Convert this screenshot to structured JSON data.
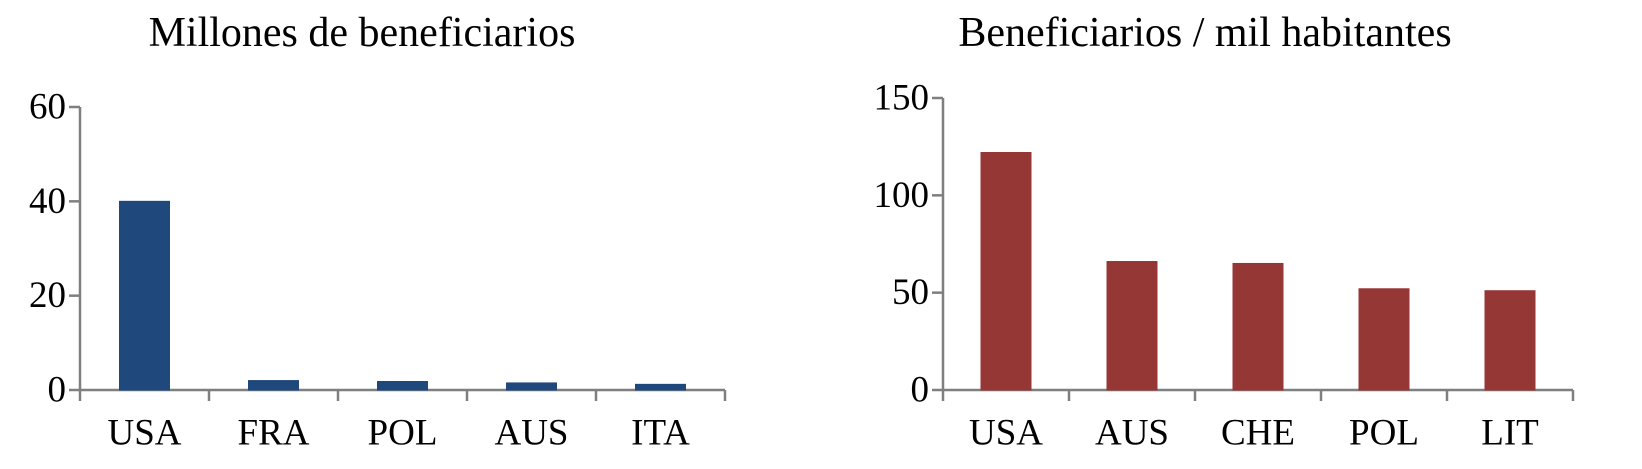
{
  "chart_data": [
    {
      "type": "bar",
      "title": "Millones de beneficiarios",
      "categories": [
        "USA",
        "FRA",
        "POL",
        "AUS",
        "ITA"
      ],
      "values": [
        40,
        2.0,
        1.8,
        1.5,
        1.2
      ],
      "ylim": [
        0,
        60
      ],
      "yticks": [
        "0",
        "20",
        "40",
        "60"
      ],
      "color": "#1f497d",
      "grid": false,
      "legend": "none"
    },
    {
      "type": "bar",
      "title": "Beneficiarios / mil habitantes",
      "categories": [
        "USA",
        "AUS",
        "CHE",
        "POL",
        "LIT"
      ],
      "values": [
        122,
        66,
        65,
        52,
        51
      ],
      "ylim": [
        0,
        150
      ],
      "yticks": [
        "0",
        "50",
        "100",
        "150"
      ],
      "color": "#953735",
      "grid": false,
      "legend": "none"
    }
  ]
}
